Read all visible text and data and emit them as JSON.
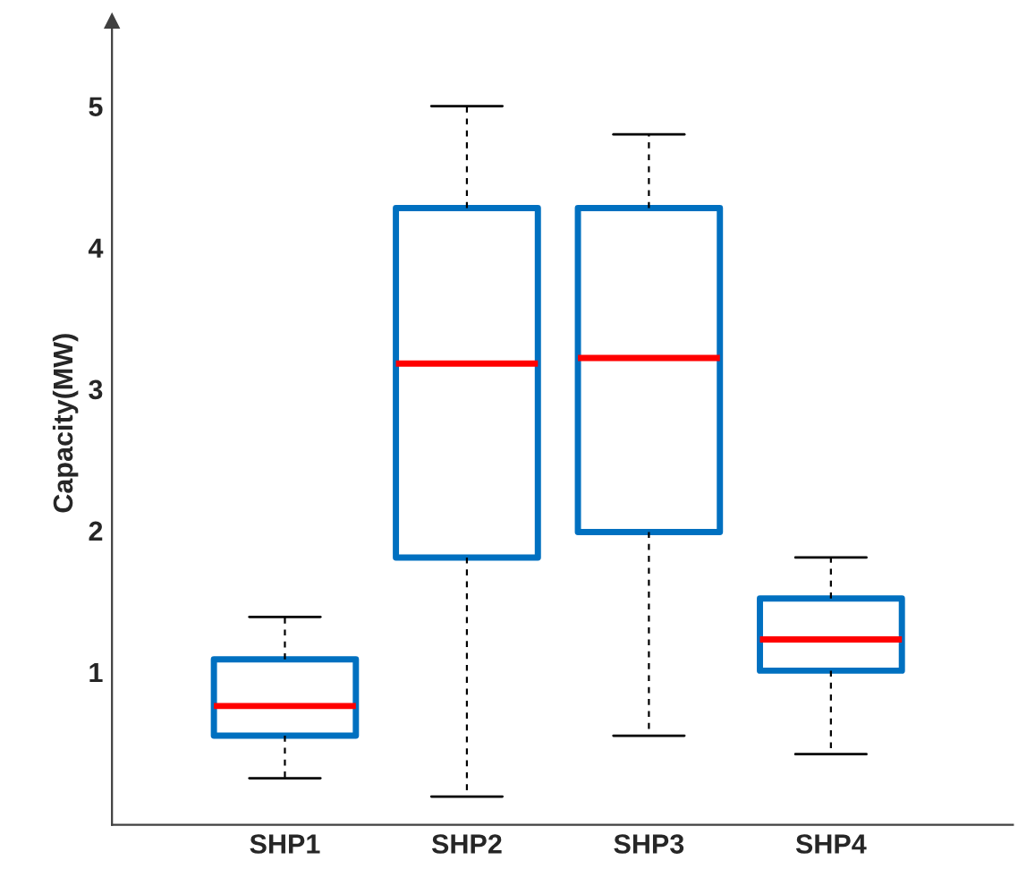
{
  "chart_data": {
    "type": "box",
    "ylabel": "Capacity(MW)",
    "categories": [
      "SHP1",
      "SHP2",
      "SHP3",
      "SHP4"
    ],
    "series": [
      {
        "color": "#0070c0",
        "boxes": [
          {
            "low": 0.25,
            "q1": 0.55,
            "median": 0.76,
            "q3": 1.09,
            "high": 1.39
          },
          {
            "low": 0.12,
            "q1": 1.81,
            "median": 3.18,
            "q3": 4.28,
            "high": 5.0
          },
          {
            "low": 0.55,
            "q1": 1.99,
            "median": 3.22,
            "q3": 4.28,
            "high": 4.8
          },
          {
            "low": 0.42,
            "q1": 1.01,
            "median": 1.23,
            "q3": 1.52,
            "high": 1.81
          }
        ]
      }
    ],
    "ylim": [
      -0.08,
      5.6
    ],
    "yticks": [
      1,
      2,
      3,
      4,
      5
    ],
    "grid": false
  }
}
